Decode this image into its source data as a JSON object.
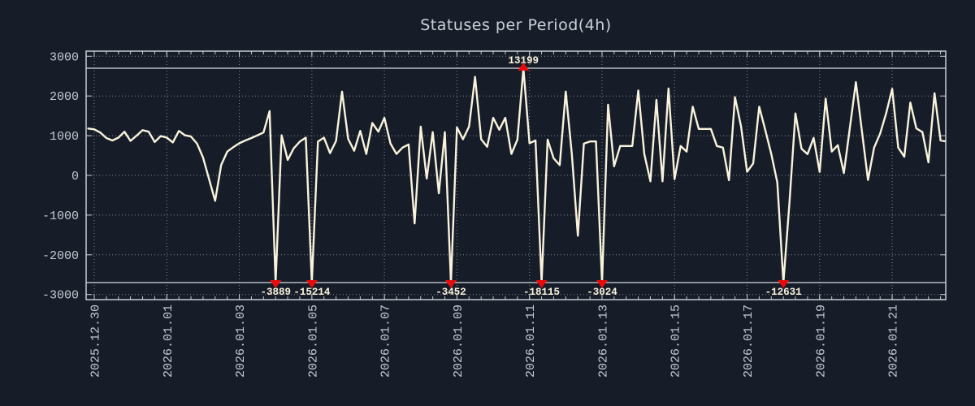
{
  "title": "Statuses per Period(4h)",
  "colors": {
    "background": "#161d29",
    "line": "#faf3dc",
    "marker": "#e80b0b",
    "grid": "#8d939d",
    "border": "#c9ccd2",
    "clip_line": "#d6d9dd",
    "tick_text": "#c6cbd2",
    "title_text": "#ccd1d8",
    "annotation_text": "#faf3dc"
  },
  "chart_data": {
    "type": "line",
    "title": "Statuses per Period(4h)",
    "series_start": "2025-12-29 20:00",
    "interval_hours": 4,
    "ylim": [
      -3000,
      3000
    ],
    "clip_threshold": 2700,
    "grid": true,
    "legend": "none",
    "values": [
      1180,
      1160,
      1080,
      940,
      880,
      950,
      1100,
      870,
      1000,
      1140,
      1100,
      840,
      990,
      950,
      830,
      1120,
      1010,
      980,
      800,
      450,
      -100,
      -640,
      260,
      600,
      710,
      810,
      880,
      940,
      1010,
      1080,
      1620,
      -3889,
      1010,
      390,
      680,
      850,
      950,
      -15214,
      850,
      950,
      560,
      870,
      2110,
      920,
      620,
      1120,
      540,
      1320,
      1100,
      1450,
      800,
      540,
      700,
      780,
      -1210,
      1230,
      -80,
      1090,
      -450,
      1090,
      -3452,
      1210,
      910,
      1230,
      2480,
      910,
      720,
      1450,
      1150,
      1450,
      540,
      900,
      13199,
      810,
      880,
      -18115,
      900,
      430,
      260,
      2110,
      535,
      -1520,
      800,
      855,
      855,
      -3024,
      1780,
      230,
      740,
      740,
      740,
      2140,
      535,
      -150,
      1900,
      -150,
      2190,
      -95,
      740,
      600,
      1730,
      1170,
      1170,
      1170,
      740,
      700,
      -120,
      1970,
      1230,
      90,
      300,
      1730,
      1150,
      535,
      -180,
      -12631,
      -700,
      1560,
      670,
      535,
      945,
      88,
      1935,
      600,
      760,
      60,
      1200,
      2350,
      1100,
      -115,
      700,
      1050,
      1560,
      2180,
      700,
      470,
      1835,
      1185,
      1090,
      330,
      2070,
      880,
      860
    ],
    "y_ticks": [
      {
        "label": "3000",
        "value": 3000
      },
      {
        "label": "2000",
        "value": 2000
      },
      {
        "label": "1000",
        "value": 1000
      },
      {
        "label": "0",
        "value": 0
      },
      {
        "label": "-1000",
        "value": -1000
      },
      {
        "label": "-2000",
        "value": -2000
      },
      {
        "label": "-3000",
        "value": -3000
      }
    ],
    "x_ticks": [
      {
        "label": "2025.12.30",
        "index": 1
      },
      {
        "label": "2026.01.01",
        "index": 13
      },
      {
        "label": "2026.01.03",
        "index": 25
      },
      {
        "label": "2026.01.05",
        "index": 37
      },
      {
        "label": "2026.01.07",
        "index": 49
      },
      {
        "label": "2026.01.09",
        "index": 61
      },
      {
        "label": "2026.01.11",
        "index": 73
      },
      {
        "label": "2026.01.13",
        "index": 85
      },
      {
        "label": "2026.01.15",
        "index": 97
      },
      {
        "label": "2026.01.17",
        "index": 109
      },
      {
        "label": "2026.01.19",
        "index": 121
      },
      {
        "label": "2026.01.21",
        "index": 133
      }
    ],
    "annotations": [
      {
        "index": 31,
        "value": -3889,
        "label": "-3889",
        "position": "below"
      },
      {
        "index": 37,
        "value": -15214,
        "label": "-15214",
        "position": "below"
      },
      {
        "index": 60,
        "value": -3452,
        "label": "-3452",
        "position": "below"
      },
      {
        "index": 72,
        "value": 13199,
        "label": "13199",
        "position": "above"
      },
      {
        "index": 75,
        "value": -18115,
        "label": "-18115",
        "position": "below"
      },
      {
        "index": 85,
        "value": -3024,
        "label": "-3024",
        "position": "below"
      },
      {
        "index": 115,
        "value": -12631,
        "label": "-12631",
        "position": "below"
      }
    ]
  }
}
